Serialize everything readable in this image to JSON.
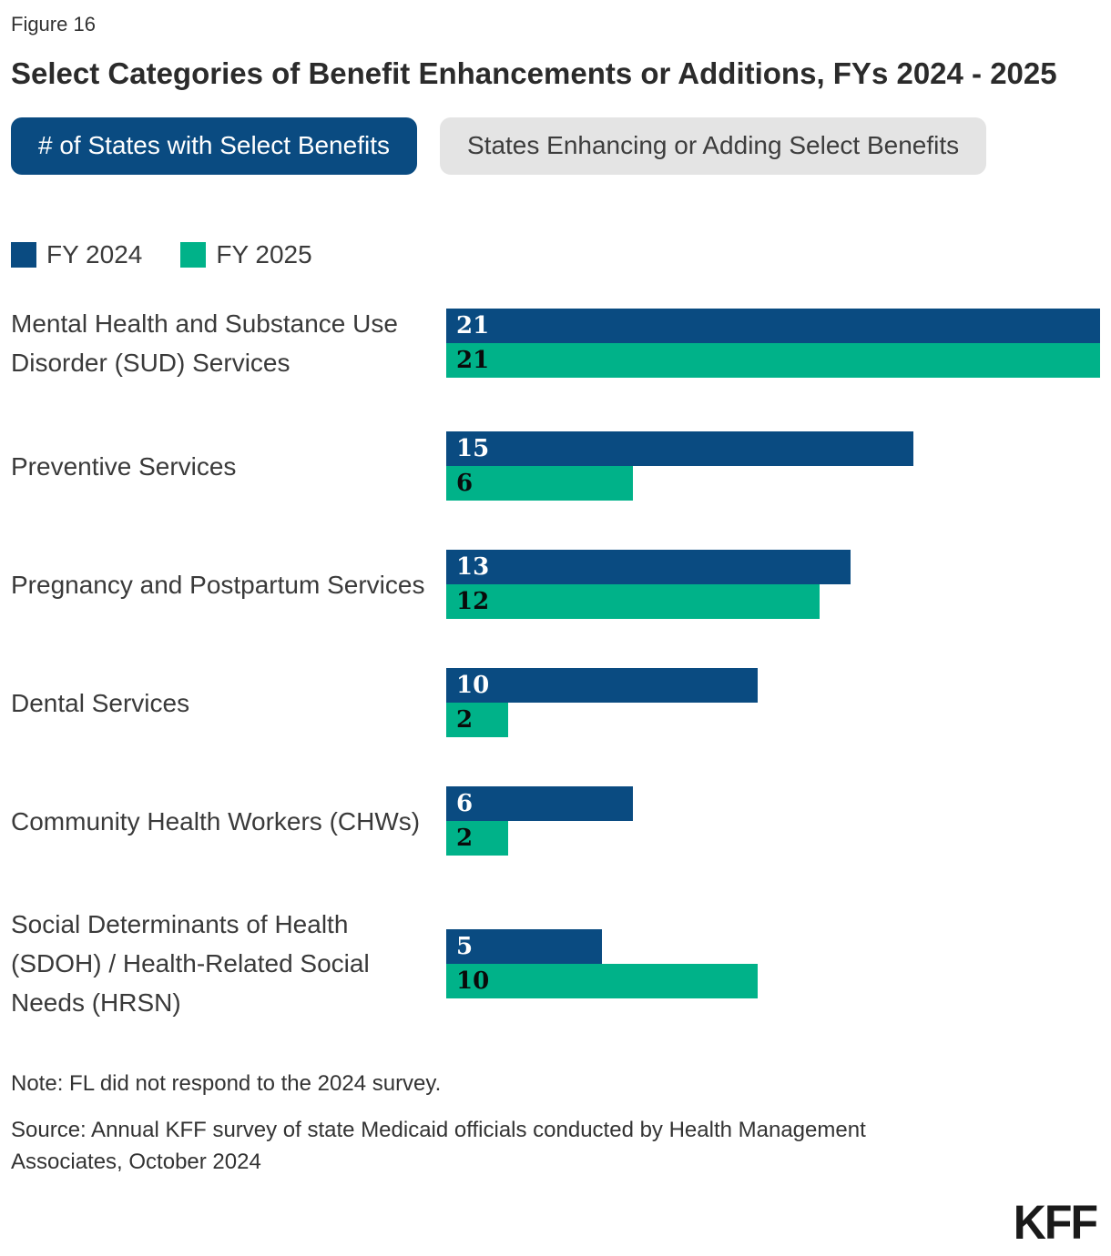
{
  "figure_label": "Figure 16",
  "title": "Select Categories of Benefit Enhancements or Additions, FYs 2024 - 2025",
  "tabs": [
    {
      "label": "# of States with Select Benefits",
      "active": true
    },
    {
      "label": "States Enhancing or Adding Select Benefits",
      "active": false
    }
  ],
  "legend": [
    {
      "label": "FY 2024",
      "color": "#0A4B81"
    },
    {
      "label": "FY 2025",
      "color": "#00B289"
    }
  ],
  "colors": {
    "fy2024": "#0A4B81",
    "fy2025": "#00B289",
    "tab_inactive_bg": "#E4E4E4",
    "text": "#333333"
  },
  "chart_data": {
    "type": "bar",
    "orientation": "horizontal",
    "title": "Select Categories of Benefit Enhancements or Additions, FYs 2024 - 2025",
    "categories": [
      "Mental Health and Substance Use Disorder (SUD) Services",
      "Preventive Services",
      "Pregnancy and Postpartum Services",
      "Dental Services",
      "Community Health Workers (CHWs)",
      "Social Determinants of Health (SDOH) / Health-Related Social Needs (HRSN)"
    ],
    "series": [
      {
        "name": "FY 2024",
        "color": "#0A4B81",
        "values": [
          21,
          15,
          13,
          10,
          6,
          5
        ]
      },
      {
        "name": "FY 2025",
        "color": "#00B289",
        "values": [
          21,
          6,
          12,
          2,
          2,
          10
        ]
      }
    ],
    "xlim": [
      0,
      21
    ],
    "grid": false,
    "legend_position": "top-left",
    "value_labels": "inside-start"
  },
  "note": "Note: FL did not respond to the 2024 survey.",
  "source": "Source: Annual KFF survey of state Medicaid officials conducted by Health Management Associates, October 2024",
  "logo_text": "KFF"
}
